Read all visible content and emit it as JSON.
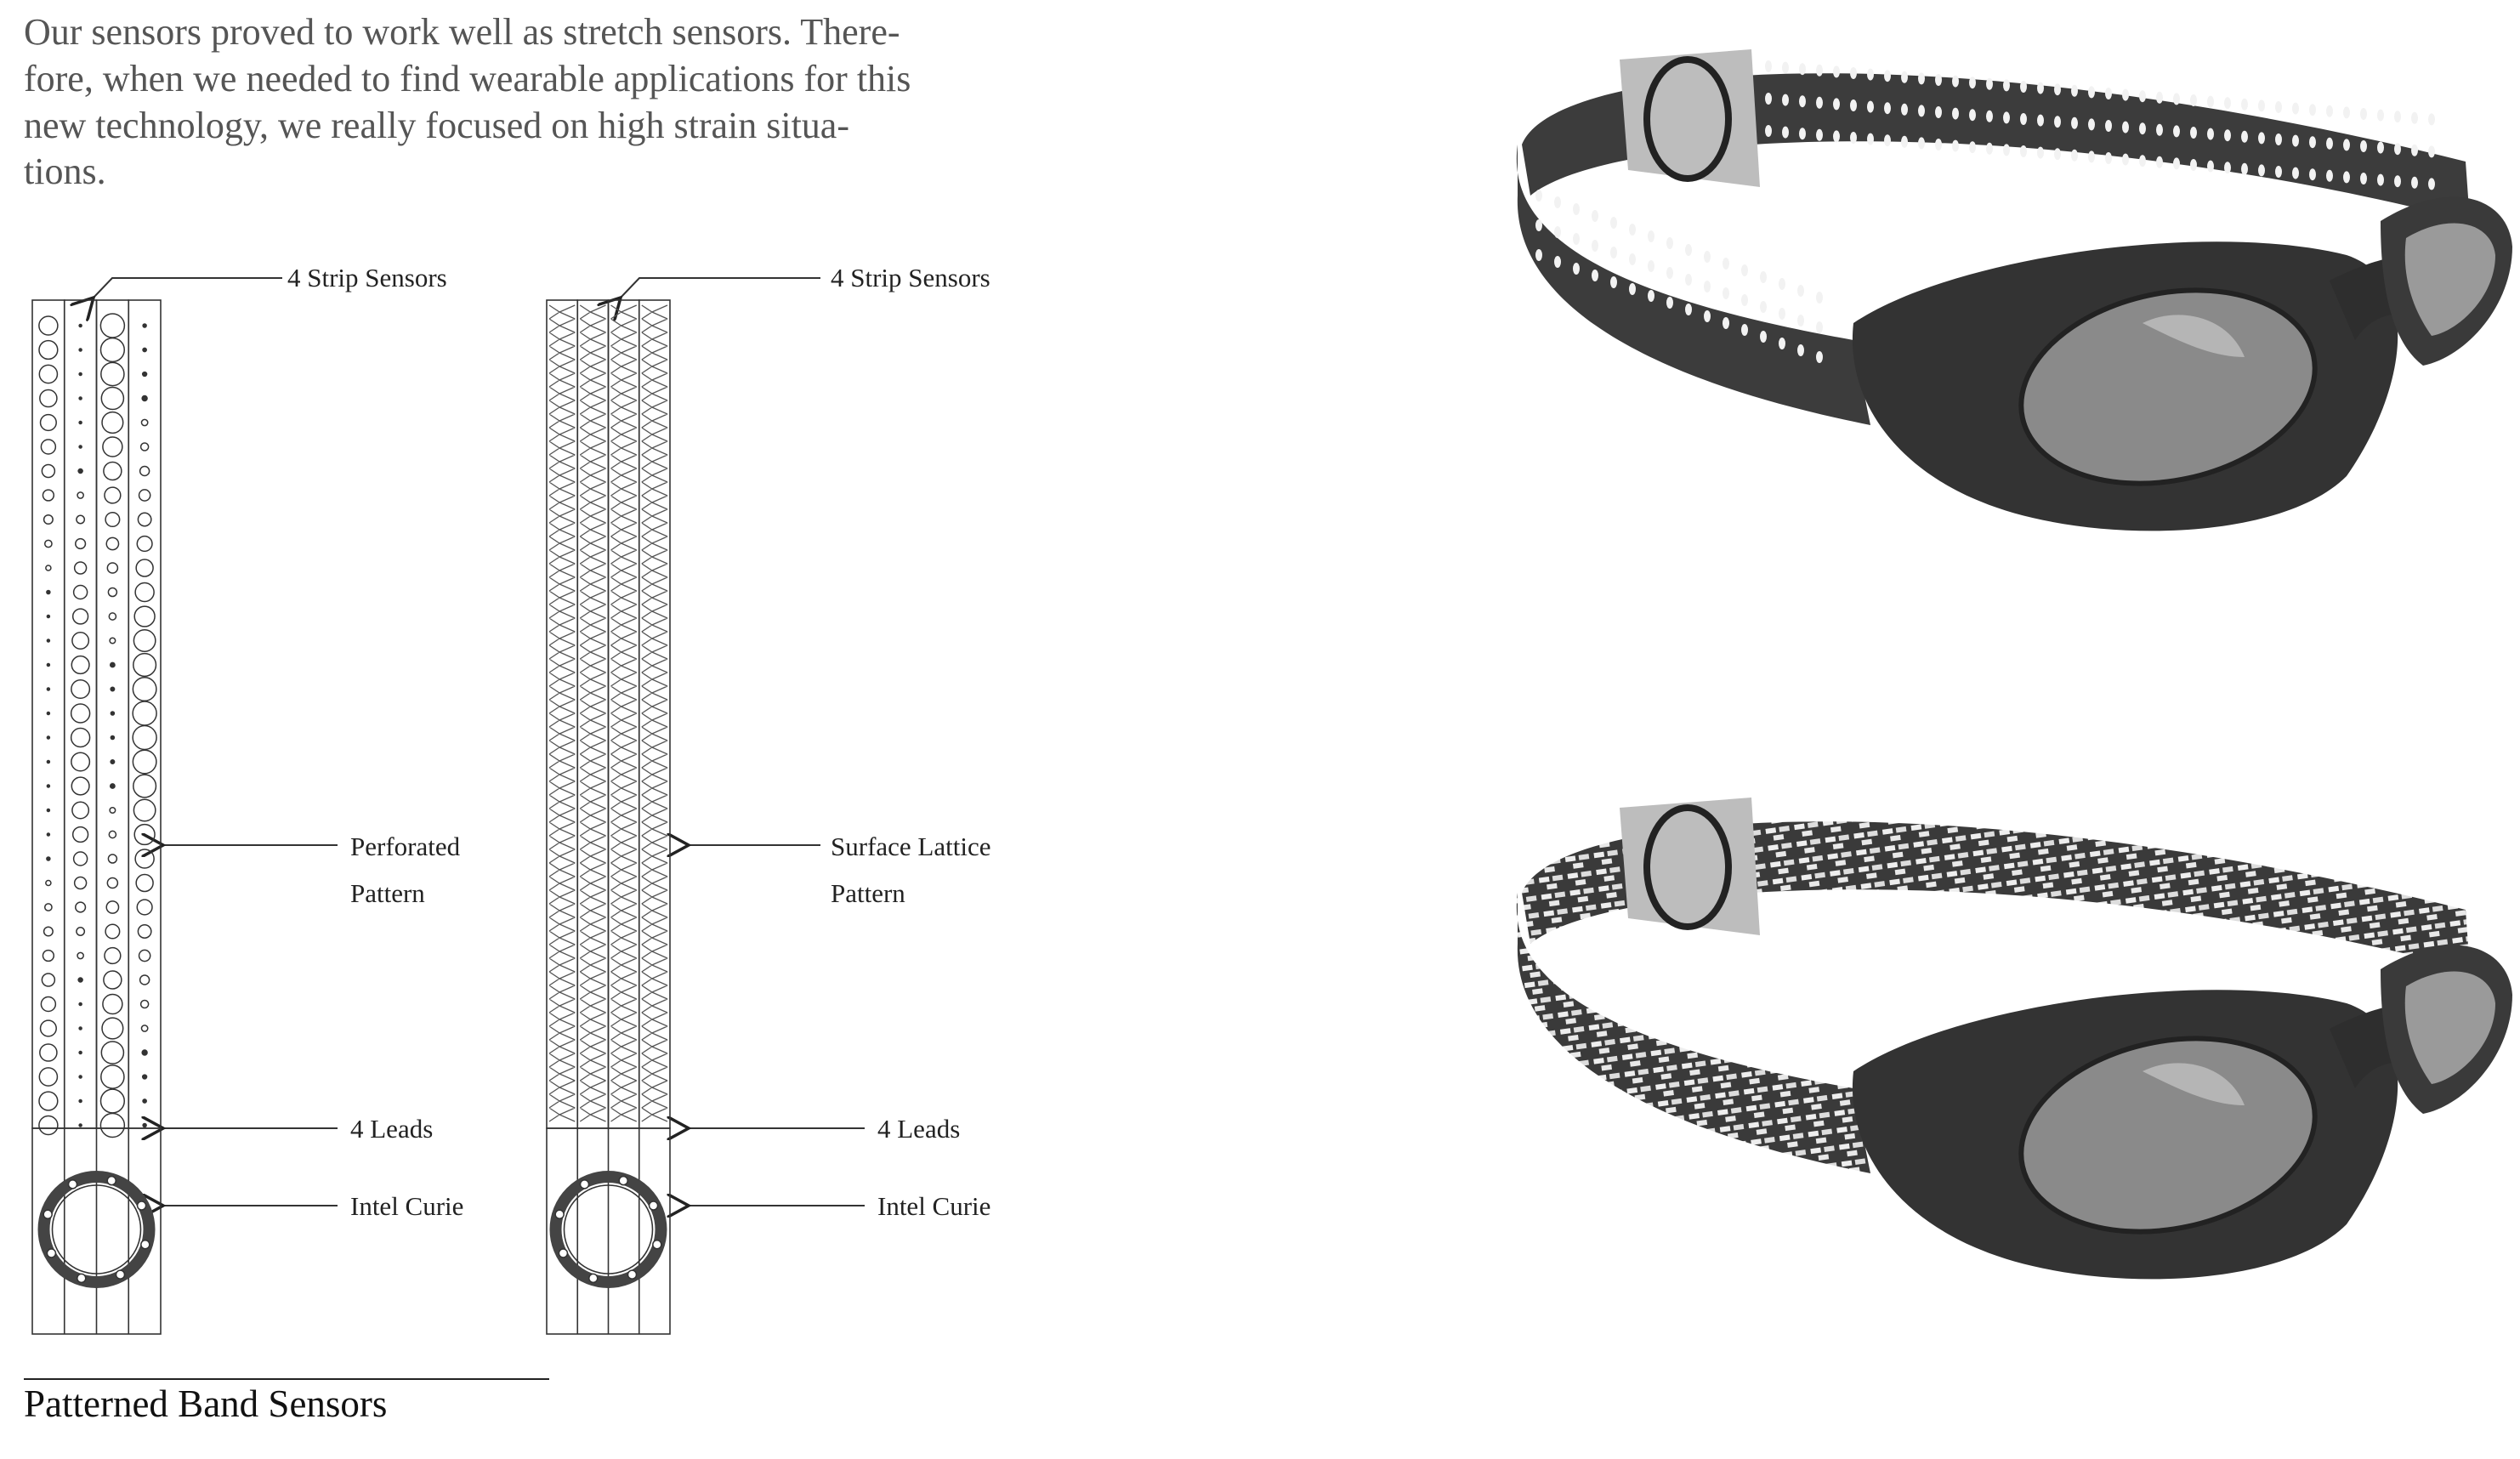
{
  "paragraph": {
    "lines": [
      "Our sensors proved to work well as stretch sensors. There-",
      "fore, when we needed to find wearable applications for this",
      "new technology, we really focused on high strain situa-",
      "tions."
    ]
  },
  "diagrams": {
    "perforated": {
      "top_label": "4 Strip Sensors",
      "pattern_label": [
        "Perforated",
        "Pattern"
      ],
      "leads_label": "4 Leads",
      "chip_label": "Intel Curie"
    },
    "lattice": {
      "top_label": "4 Strip Sensors",
      "pattern_label": [
        "Surface Lattice",
        "Pattern"
      ],
      "leads_label": "4 Leads",
      "chip_label": "Intel Curie"
    }
  },
  "caption": "Patterned Band Sensors"
}
